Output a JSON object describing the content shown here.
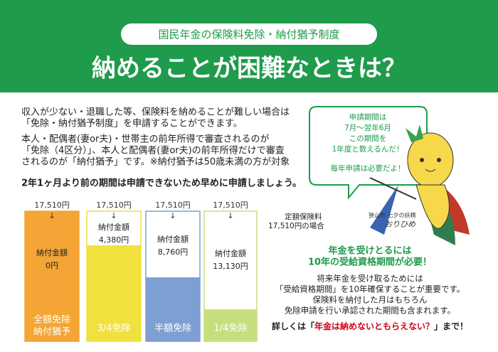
{
  "header": {
    "subtitle": "国民年金の保険料免除・納付猶予制度",
    "title": "納めることが困難なときは？"
  },
  "body": {
    "paragraphs": [
      [
        "収入が少ない・退職した等、保険料を納めることが難しい場合は",
        "「免除・納付猶予制度」を申請することができます。"
      ],
      [
        "本人・配偶者(妻or夫)・世帯主の前年所得で審査されるのが",
        "「免除（4区分）」、本人と配偶者(妻or夫)の前年所得だけで審査",
        "されるのが「納付猶予」です。※納付猶予は50歳未満の方が対象"
      ],
      [
        "2年1ヶ月より前の期間は申請できないため早めに申請しましょう。"
      ]
    ]
  },
  "bubble": {
    "lines": [
      "申請期間は",
      "7月～翌年6月",
      "この期間を",
      "1年度と数えるんだ！"
    ],
    "note": "毎年申請は必要だよ！"
  },
  "columns": [
    {
      "base": "17,510円",
      "arrow": "↓",
      "label": "納付金額",
      "amount": "0円",
      "name": [
        "全額免除",
        "納付猶予"
      ]
    },
    {
      "base": "17,510円",
      "arrow": "↓",
      "label": "納付金額",
      "amount": "4,380円",
      "name": [
        "3/4免除"
      ]
    },
    {
      "base": "17,510円",
      "arrow": "↓",
      "label": "納付金額",
      "amount": "8,760円",
      "name": [
        "半額免除"
      ]
    },
    {
      "base": "17,510円",
      "arrow": "↓",
      "label": "納付金額",
      "amount": "13,130円",
      "name": [
        "1/4免除"
      ]
    }
  ],
  "fixed_note": [
    "定額保険料",
    "17,510円の場合"
  ],
  "eligibility": {
    "heading": [
      "年金を受けとるには",
      "10年の受給資格期間が必要！"
    ],
    "lines": [
      "将来年金を受け取るためには",
      "「受給資格期間」を10年確保することが重要です。",
      "保険料を納付した月はもちろん",
      "免除申請を行い承認された期間も含まれます。"
    ],
    "footer": {
      "before": "詳しくは「",
      "link": "年金は納めないともらえない？",
      "after": "」まで！"
    }
  },
  "mascot": {
    "caption": "狭山市 七夕の妖精",
    "name": "おりひめ"
  }
}
